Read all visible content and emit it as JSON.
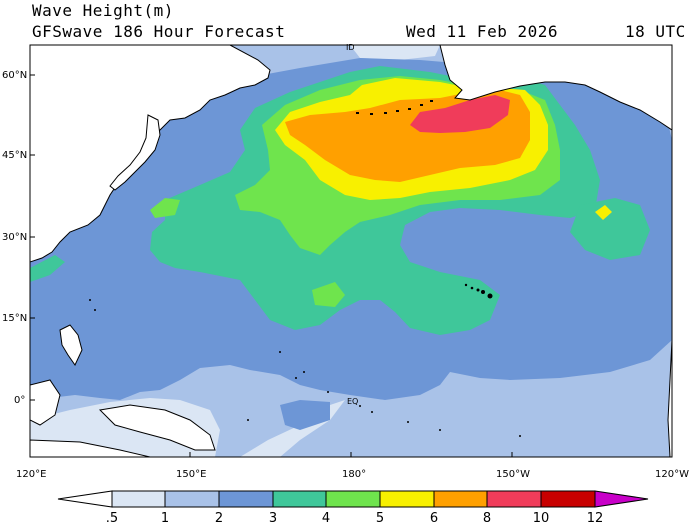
{
  "header": {
    "title": "Wave Height(m)",
    "subtitle": "GFSwave 186 Hour Forecast",
    "date": "Wed 11 Feb 2026",
    "time": "18 UTC"
  },
  "map": {
    "lat_labels": [
      "60°N",
      "45°N",
      "30°N",
      "15°N",
      "0°"
    ],
    "lon_labels": [
      "120°E",
      "150°E",
      "180°",
      "150°W",
      "120°W"
    ],
    "markers": {
      "idl": "ID",
      "equator": "EQ"
    }
  },
  "legend": {
    "labels": [
      ".5",
      "1",
      "2",
      "3",
      "4",
      "5",
      "6",
      "8",
      "10",
      "12"
    ],
    "colors": [
      "#ffffff",
      "#dbe6f4",
      "#a9c2e8",
      "#6d96d6",
      "#3fc79a",
      "#6fe44d",
      "#f8f000",
      "#ffa000",
      "#f03c5a",
      "#c80000",
      "#c800c8"
    ]
  },
  "colors": {
    "land": "#ffffff",
    "coast": "#000000",
    "bg_sea": "#a9c2e8"
  }
}
